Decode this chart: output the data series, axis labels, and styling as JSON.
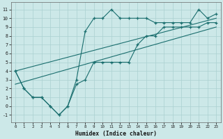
{
  "xlabel": "Humidex (Indice chaleur)",
  "xlim": [
    -0.5,
    23.5
  ],
  "ylim": [
    -1.8,
    11.8
  ],
  "xticks": [
    0,
    1,
    2,
    3,
    4,
    5,
    6,
    7,
    8,
    9,
    10,
    11,
    12,
    13,
    14,
    15,
    16,
    17,
    18,
    19,
    20,
    21,
    22,
    23
  ],
  "yticks": [
    -1,
    0,
    1,
    2,
    3,
    4,
    5,
    6,
    7,
    8,
    9,
    10,
    11
  ],
  "bg_color": "#cce8e8",
  "grid_color": "#aad0d0",
  "line_color": "#1a6e6e",
  "curve_upper": {
    "x": [
      0,
      1,
      2,
      3,
      4,
      5,
      6,
      7,
      8,
      9,
      10,
      11,
      12,
      13,
      14,
      15,
      16,
      17,
      18,
      19,
      20,
      21,
      22,
      23
    ],
    "y": [
      4,
      2,
      1,
      1,
      0,
      -1,
      0,
      3,
      8.5,
      10,
      10,
      11,
      10,
      10,
      10,
      10,
      9.5,
      9.5,
      9.5,
      9.5,
      9.5,
      11,
      10,
      10.5
    ]
  },
  "curve_lower": {
    "x": [
      0,
      1,
      2,
      3,
      4,
      5,
      6,
      7,
      8,
      9,
      10,
      11,
      12,
      13,
      14,
      15,
      16,
      17,
      18,
      19,
      20,
      21,
      22,
      23
    ],
    "y": [
      4,
      2,
      1,
      1,
      0,
      -1,
      0,
      2.5,
      3,
      5,
      5,
      5,
      5,
      5,
      7,
      8,
      8,
      9,
      9,
      9,
      9,
      9,
      9.5,
      9.5
    ]
  },
  "diag1": {
    "x": [
      0,
      23
    ],
    "y": [
      4,
      10
    ]
  },
  "diag2": {
    "x": [
      0,
      23
    ],
    "y": [
      2.5,
      9
    ]
  }
}
